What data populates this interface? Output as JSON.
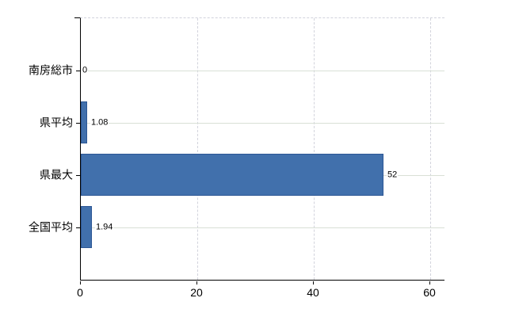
{
  "chart_data": {
    "type": "bar",
    "orientation": "horizontal",
    "title": "",
    "xlabel": "",
    "ylabel": "",
    "categories": [
      "南房総市",
      "県平均",
      "県最大",
      "全国平均"
    ],
    "values": [
      0,
      1.08,
      52,
      1.94
    ],
    "value_labels": [
      "0",
      "1.08",
      "52",
      "1.94"
    ],
    "x_ticks": [
      0,
      20,
      40,
      60
    ],
    "x_tick_labels": [
      "0",
      "20",
      "40",
      "60"
    ],
    "xlim": [
      0,
      62.6
    ],
    "grid": "on",
    "legend_position": "none",
    "colors": {
      "bar_fill": "#4170ac",
      "bar_border": "#2d5795",
      "h_gridline": "#d9e0d6",
      "v_gridline": "#d2d3dc",
      "axis": "#000000",
      "text": "#000000",
      "background": "#ffffff"
    }
  }
}
